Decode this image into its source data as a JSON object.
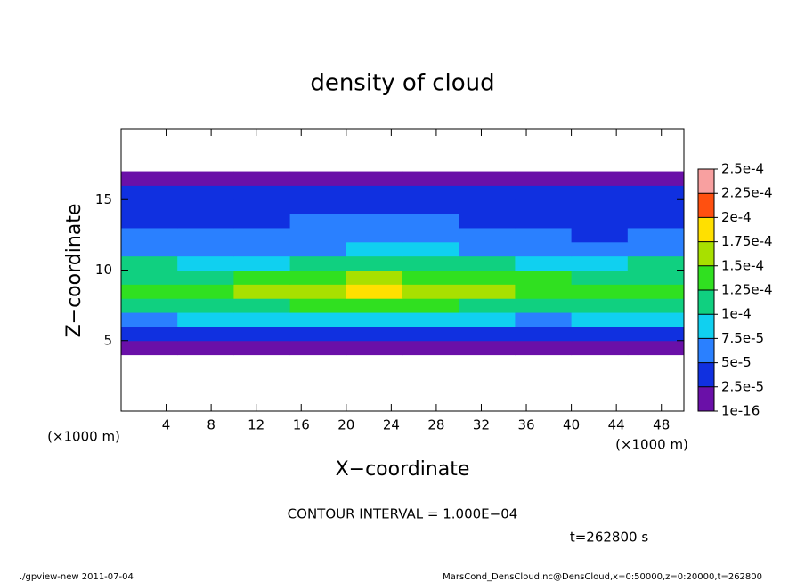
{
  "chart_data": {
    "type": "heatmap",
    "title": "density of cloud",
    "xlabel": "X−coordinate",
    "ylabel": "Z−coordinate",
    "x_unit": "(×1000 m)",
    "x_unit_right": "(×1000 m)",
    "contour_note": "CONTOUR INTERVAL = 1.000E−04",
    "time_note": "t=262800 s",
    "footer_left": "./gpview-new  2011-07-04",
    "footer_right": "MarsCond_DensCloud.nc@DensCloud,x=0:50000,z=0:20000,t=262800",
    "xlim": [
      0,
      50
    ],
    "ylim": [
      0,
      20
    ],
    "xticks": [
      4,
      8,
      12,
      16,
      20,
      24,
      28,
      32,
      36,
      40,
      44,
      48
    ],
    "yticks": [
      5,
      10,
      15
    ],
    "x": [
      0,
      5,
      10,
      15,
      20,
      25,
      30,
      35,
      40,
      45,
      50
    ],
    "z": [
      0,
      1,
      2,
      3,
      4,
      5,
      6,
      7,
      8,
      9,
      10,
      11,
      12,
      13,
      14,
      15,
      16,
      17,
      18,
      19,
      20
    ],
    "values": [
      [
        null,
        null,
        null,
        null,
        null,
        null,
        null,
        null,
        null,
        null
      ],
      [
        null,
        null,
        null,
        null,
        null,
        null,
        null,
        null,
        null,
        null
      ],
      [
        null,
        null,
        null,
        null,
        null,
        null,
        null,
        null,
        null,
        null
      ],
      [
        null,
        null,
        null,
        null,
        null,
        null,
        null,
        null,
        null,
        null
      ],
      [
        1e-05,
        1e-05,
        1e-05,
        1e-05,
        1e-05,
        1e-05,
        1e-05,
        1e-05,
        1e-05,
        1e-05
      ],
      [
        3e-05,
        3e-05,
        3.5e-05,
        3e-05,
        3e-05,
        3e-05,
        3e-05,
        3e-05,
        3e-05,
        3e-05
      ],
      [
        7e-05,
        8e-05,
        8e-05,
        7.5e-05,
        8e-05,
        8e-05,
        8e-05,
        7e-05,
        7.5e-05,
        8e-05
      ],
      [
        0.00011,
        0.00012,
        0.00012,
        0.00013,
        0.00013,
        0.00013,
        0.00012,
        0.00011,
        0.00011,
        0.00011
      ],
      [
        0.00013,
        0.00014,
        0.00015,
        0.00016,
        0.00018,
        0.00016,
        0.00017,
        0.00014,
        0.00013,
        0.00013
      ],
      [
        0.00012,
        0.00012,
        0.00013,
        0.00014,
        0.00015,
        0.00014,
        0.00014,
        0.00013,
        0.00012,
        0.00012
      ],
      [
        0.0001,
        9e-05,
        9e-05,
        0.00011,
        0.00011,
        0.00011,
        0.0001,
        9e-05,
        9e-05,
        0.0001
      ],
      [
        7e-05,
        6.5e-05,
        6e-05,
        7e-05,
        8e-05,
        8e-05,
        7e-05,
        6e-05,
        6e-05,
        6.5e-05
      ],
      [
        5.5e-05,
        5e-05,
        5e-05,
        5.5e-05,
        6e-05,
        6e-05,
        5.5e-05,
        5e-05,
        4.5e-05,
        5e-05
      ],
      [
        4.5e-05,
        4.5e-05,
        4.5e-05,
        5e-05,
        5e-05,
        5e-05,
        4.5e-05,
        4e-05,
        3.5e-05,
        4.5e-05
      ],
      [
        4e-05,
        4e-05,
        4e-05,
        4e-05,
        4.5e-05,
        4e-05,
        4e-05,
        3.5e-05,
        3e-05,
        4e-05
      ],
      [
        3e-05,
        3e-05,
        3e-05,
        3e-05,
        3e-05,
        3e-05,
        3e-05,
        3e-05,
        2.5e-05,
        3e-05
      ],
      [
        1e-05,
        1e-05,
        1e-05,
        1e-05,
        1e-05,
        1e-05,
        1e-05,
        1e-05,
        1e-05,
        1e-05
      ],
      [
        null,
        null,
        null,
        null,
        null,
        null,
        null,
        null,
        null,
        null
      ],
      [
        null,
        null,
        null,
        null,
        null,
        null,
        null,
        null,
        null,
        null
      ],
      [
        null,
        null,
        null,
        null,
        null,
        null,
        null,
        null,
        null,
        null
      ]
    ],
    "levels": [
      {
        "value": 1e-16,
        "label": "1e-16"
      },
      {
        "value": 2.5e-05,
        "label": "2.5e-5"
      },
      {
        "value": 5e-05,
        "label": "5e-5"
      },
      {
        "value": 7.5e-05,
        "label": "7.5e-5"
      },
      {
        "value": 0.0001,
        "label": "1e-4"
      },
      {
        "value": 0.000125,
        "label": "1.25e-4"
      },
      {
        "value": 0.00015,
        "label": "1.5e-4"
      },
      {
        "value": 0.000175,
        "label": "1.75e-4"
      },
      {
        "value": 0.0002,
        "label": "2e-4"
      },
      {
        "value": 0.000225,
        "label": "2.25e-4"
      },
      {
        "value": 0.00025,
        "label": "2.5e-4"
      }
    ],
    "colors": [
      "#6a10a8",
      "#1030e0",
      "#2a80ff",
      "#10d0f0",
      "#10d080",
      "#30e020",
      "#a8e000",
      "#ffe000",
      "#ff5010",
      "#f8a0a0"
    ]
  }
}
